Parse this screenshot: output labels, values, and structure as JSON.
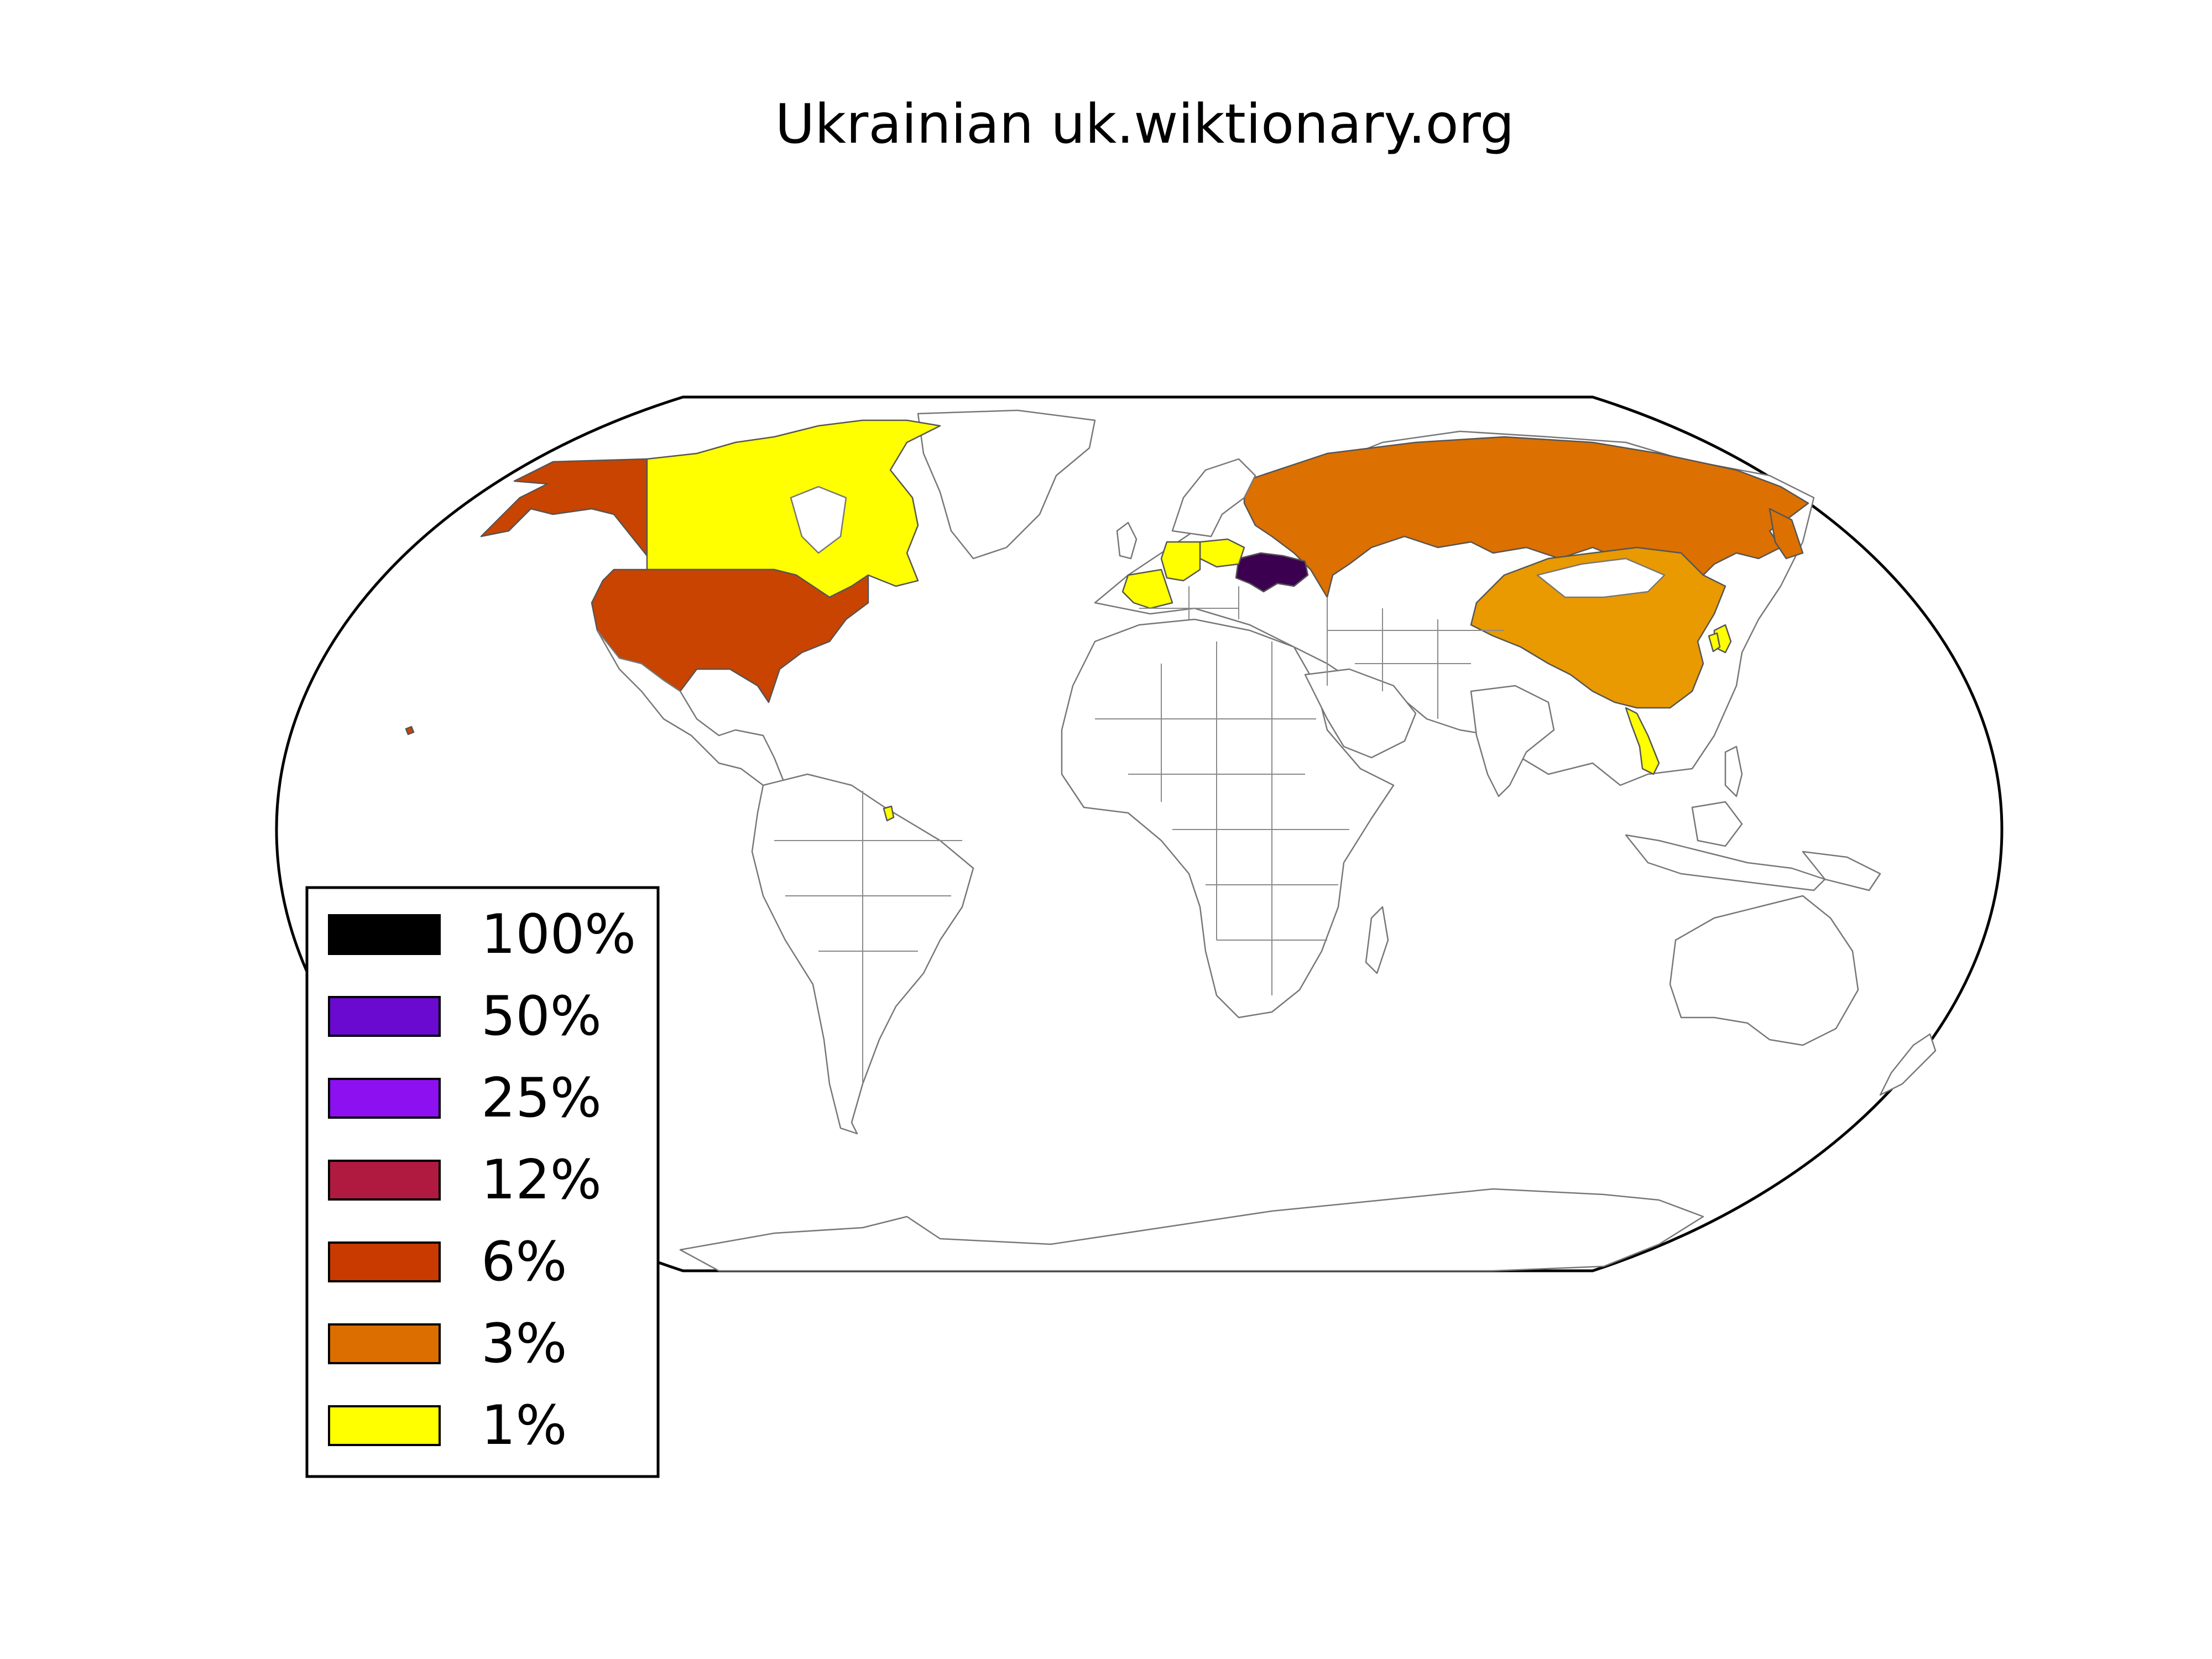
{
  "title": "Ukrainian uk.wiktionary.org",
  "legend": [
    {
      "label": "100%",
      "color": "#000000"
    },
    {
      "label": "50%",
      "color": "#6a0ad0"
    },
    {
      "label": "25%",
      "color": "#8c10f0"
    },
    {
      "label": "12%",
      "color": "#b01a40"
    },
    {
      "label": "6%",
      "color": "#c83a00"
    },
    {
      "label": "3%",
      "color": "#dc6e00"
    },
    {
      "label": "1%",
      "color": "#ffff00"
    }
  ],
  "countries": {
    "ukraine": {
      "color": "#3c0050"
    },
    "united_states": {
      "color": "#c84400"
    },
    "russia": {
      "color": "#dc7000"
    },
    "china": {
      "color": "#e89a00"
    },
    "canada": {
      "color": "#ffff00"
    },
    "germany": {
      "color": "#ffff00"
    },
    "poland": {
      "color": "#ffff00"
    },
    "france": {
      "color": "#ffff00"
    },
    "japan": {
      "color": "#ffff00"
    },
    "vietnam": {
      "color": "#ffff00"
    },
    "kazakhstan": {
      "color": "#ffffff"
    }
  }
}
